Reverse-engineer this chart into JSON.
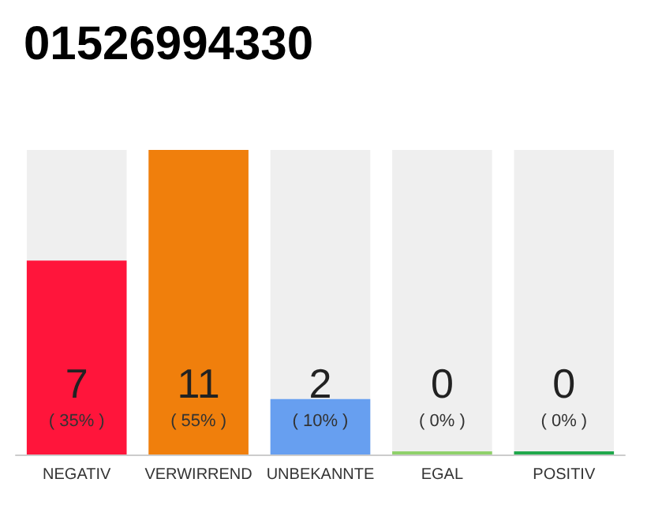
{
  "chart_data": {
    "type": "bar",
    "title": "01526994330",
    "categories": [
      "NEGATIV",
      "VERWIRREND",
      "UNBEKANNTE",
      "EGAL",
      "POSITIV"
    ],
    "values": [
      7,
      11,
      2,
      0,
      0
    ],
    "colors": [
      "#ff153b",
      "#f07f0c",
      "#679ff0",
      "#8fd16b",
      "#21a84c"
    ],
    "value_labels": [
      "7\n( 35% )",
      "11\n( 55% )",
      "2\n( 10% )",
      "0\n( 0% )",
      "0\n( 0% )"
    ],
    "ylim": [
      0,
      11
    ]
  }
}
